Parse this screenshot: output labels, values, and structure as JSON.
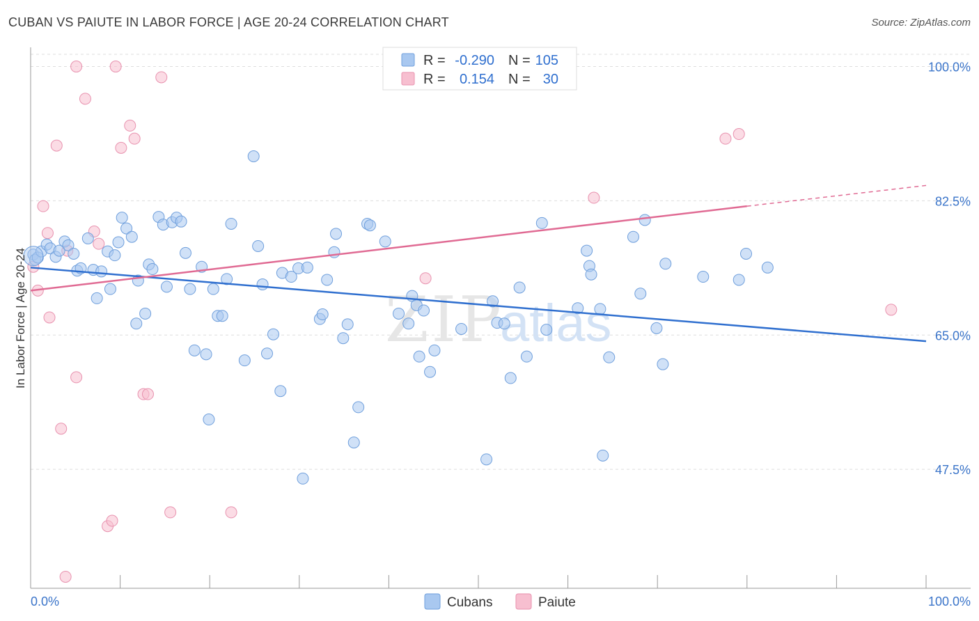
{
  "header": {
    "title": "CUBAN VS PAIUTE IN LABOR FORCE | AGE 20-24 CORRELATION CHART",
    "source": "Source: ZipAtlas.com"
  },
  "colors": {
    "blue_fill": "#a9c8f0",
    "blue_stroke": "#6f9fdc",
    "blue_line": "#2f6fcf",
    "pink_fill": "#f7bfd0",
    "pink_stroke": "#e891ae",
    "pink_line": "#e06a93",
    "grid": "#dddddd",
    "axis_label": "#3a74c9"
  },
  "legend": {
    "rows": [
      {
        "r_label": "R =",
        "r_value": "-0.290",
        "n_label": "N =",
        "n_value": "105"
      },
      {
        "r_label": "R =",
        "r_value": "0.154",
        "n_label": "N =",
        "n_value": "30"
      }
    ]
  },
  "watermark": {
    "part1": "ZIP",
    "part2": "atlas"
  },
  "chart_data": {
    "type": "scatter",
    "title": "CUBAN VS PAIUTE IN LABOR FORCE | AGE 20-24 CORRELATION CHART",
    "xlabel": "",
    "ylabel": "In Labor Force | Age 20-24",
    "xlim": [
      0,
      100
    ],
    "ylim": [
      32,
      102.5
    ],
    "x_tick_labels": [
      "0.0%",
      "100.0%"
    ],
    "y_ticks": [
      47.5,
      65.0,
      82.5,
      100.0
    ],
    "y_tick_labels": [
      "47.5%",
      "65.0%",
      "82.5%",
      "100.0%"
    ],
    "grid": true,
    "legend_position": "top-center",
    "series": [
      {
        "name": "Cubans",
        "r": -0.29,
        "n": 105,
        "trend": {
          "x": [
            0,
            100
          ],
          "y": [
            73.8,
            64.2
          ]
        },
        "points": [
          [
            0.3,
            75.5
          ],
          [
            0.5,
            74.8
          ],
          [
            0.8,
            75.1
          ],
          [
            1.2,
            75.9
          ],
          [
            1.8,
            76.8
          ],
          [
            2.2,
            76.3
          ],
          [
            2.8,
            75.2
          ],
          [
            3.2,
            76.0
          ],
          [
            3.8,
            77.2
          ],
          [
            4.2,
            76.7
          ],
          [
            4.8,
            75.6
          ],
          [
            5.2,
            73.4
          ],
          [
            5.6,
            73.7
          ],
          [
            6.4,
            77.6
          ],
          [
            7.0,
            73.5
          ],
          [
            7.4,
            69.8
          ],
          [
            7.9,
            73.3
          ],
          [
            8.6,
            75.9
          ],
          [
            8.9,
            71.0
          ],
          [
            9.4,
            75.4
          ],
          [
            9.8,
            77.1
          ],
          [
            10.2,
            80.3
          ],
          [
            10.7,
            78.9
          ],
          [
            11.3,
            77.8
          ],
          [
            11.8,
            66.5
          ],
          [
            12.0,
            72.1
          ],
          [
            12.8,
            67.8
          ],
          [
            13.2,
            74.2
          ],
          [
            13.6,
            73.6
          ],
          [
            14.3,
            80.4
          ],
          [
            14.8,
            79.4
          ],
          [
            15.2,
            71.3
          ],
          [
            15.8,
            79.7
          ],
          [
            16.3,
            80.3
          ],
          [
            16.8,
            79.8
          ],
          [
            17.3,
            75.7
          ],
          [
            17.8,
            71.0
          ],
          [
            18.3,
            63.0
          ],
          [
            19.1,
            73.9
          ],
          [
            19.6,
            62.5
          ],
          [
            19.9,
            54.0
          ],
          [
            20.4,
            71.0
          ],
          [
            20.9,
            67.5
          ],
          [
            21.4,
            67.5
          ],
          [
            21.9,
            72.3
          ],
          [
            22.4,
            79.5
          ],
          [
            23.9,
            61.7
          ],
          [
            24.9,
            88.3
          ],
          [
            25.4,
            76.6
          ],
          [
            25.9,
            71.6
          ],
          [
            26.4,
            62.6
          ],
          [
            27.1,
            65.1
          ],
          [
            27.9,
            57.7
          ],
          [
            28.1,
            73.1
          ],
          [
            29.1,
            72.6
          ],
          [
            29.9,
            73.7
          ],
          [
            30.4,
            46.3
          ],
          [
            30.9,
            73.8
          ],
          [
            32.3,
            67.1
          ],
          [
            32.6,
            67.7
          ],
          [
            33.1,
            72.2
          ],
          [
            33.9,
            75.8
          ],
          [
            34.1,
            78.2
          ],
          [
            34.9,
            64.6
          ],
          [
            35.4,
            66.4
          ],
          [
            36.6,
            55.6
          ],
          [
            36.1,
            51.0
          ],
          [
            37.6,
            79.5
          ],
          [
            37.9,
            79.3
          ],
          [
            39.6,
            77.2
          ],
          [
            41.1,
            67.8
          ],
          [
            42.2,
            66.5
          ],
          [
            42.6,
            70.1
          ],
          [
            43.1,
            68.9
          ],
          [
            43.4,
            62.2
          ],
          [
            43.9,
            68.2
          ],
          [
            44.6,
            60.2
          ],
          [
            45.1,
            63.0
          ],
          [
            48.1,
            65.8
          ],
          [
            50.9,
            48.8
          ],
          [
            51.6,
            69.4
          ],
          [
            52.1,
            66.6
          ],
          [
            52.9,
            66.5
          ],
          [
            53.6,
            59.4
          ],
          [
            54.6,
            71.2
          ],
          [
            55.4,
            62.2
          ],
          [
            57.1,
            79.6
          ],
          [
            57.6,
            65.7
          ],
          [
            61.1,
            68.5
          ],
          [
            62.1,
            76.0
          ],
          [
            62.4,
            74.0
          ],
          [
            62.6,
            72.9
          ],
          [
            63.9,
            49.3
          ],
          [
            63.6,
            68.4
          ],
          [
            64.6,
            62.1
          ],
          [
            67.3,
            77.8
          ],
          [
            68.1,
            70.4
          ],
          [
            68.6,
            80.0
          ],
          [
            69.9,
            65.9
          ],
          [
            70.6,
            61.2
          ],
          [
            70.9,
            74.3
          ],
          [
            75.1,
            72.6
          ],
          [
            79.1,
            72.2
          ],
          [
            79.9,
            75.6
          ],
          [
            82.3,
            73.8
          ]
        ]
      },
      {
        "name": "Paiute",
        "r": 0.154,
        "n": 30,
        "trend": {
          "x": [
            0,
            80
          ],
          "y": [
            70.8,
            81.8
          ]
        },
        "trend_dashed_to": {
          "x": 100,
          "y": 84.5
        },
        "points": [
          [
            0.3,
            73.9
          ],
          [
            0.8,
            70.8
          ],
          [
            1.4,
            81.8
          ],
          [
            1.9,
            78.3
          ],
          [
            2.1,
            67.3
          ],
          [
            2.9,
            89.7
          ],
          [
            3.4,
            52.8
          ],
          [
            3.9,
            33.5
          ],
          [
            4.1,
            76.0
          ],
          [
            5.1,
            59.5
          ],
          [
            5.1,
            100.0
          ],
          [
            6.1,
            95.8
          ],
          [
            7.1,
            78.5
          ],
          [
            7.6,
            76.9
          ],
          [
            8.6,
            40.1
          ],
          [
            9.1,
            40.8
          ],
          [
            9.5,
            100.0
          ],
          [
            10.1,
            89.4
          ],
          [
            11.1,
            92.3
          ],
          [
            11.6,
            90.6
          ],
          [
            12.6,
            57.3
          ],
          [
            13.1,
            57.3
          ],
          [
            14.6,
            98.6
          ],
          [
            15.6,
            41.9
          ],
          [
            22.4,
            41.9
          ],
          [
            44.1,
            72.4
          ],
          [
            62.9,
            82.9
          ],
          [
            77.6,
            90.6
          ],
          [
            79.1,
            91.2
          ],
          [
            96.1,
            68.3
          ]
        ]
      }
    ]
  },
  "bottom_legend": {
    "items": [
      {
        "label": "Cubans"
      },
      {
        "label": "Paiute"
      }
    ]
  }
}
